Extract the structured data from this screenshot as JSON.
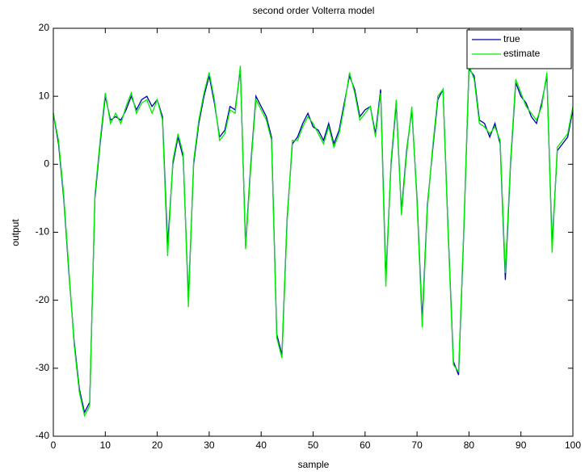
{
  "chart_data": {
    "type": "line",
    "title": "second order Volterra model",
    "xlabel": "sample",
    "ylabel": "output",
    "x": [
      0,
      1,
      2,
      3,
      4,
      5,
      6,
      7,
      8,
      9,
      10,
      11,
      12,
      13,
      14,
      15,
      16,
      17,
      18,
      19,
      20,
      21,
      22,
      23,
      24,
      25,
      26,
      27,
      28,
      29,
      30,
      31,
      32,
      33,
      34,
      35,
      36,
      37,
      38,
      39,
      40,
      41,
      42,
      43,
      44,
      45,
      46,
      47,
      48,
      49,
      50,
      51,
      52,
      53,
      54,
      55,
      56,
      57,
      58,
      59,
      60,
      61,
      62,
      63,
      64,
      65,
      66,
      67,
      68,
      69,
      70,
      71,
      72,
      73,
      74,
      75,
      76,
      77,
      78,
      79,
      80,
      81,
      82,
      83,
      84,
      85,
      86,
      87,
      88,
      89,
      90,
      91,
      92,
      93,
      94,
      95,
      96,
      97,
      98,
      99,
      100
    ],
    "series": [
      {
        "name": "true",
        "color": "#0000aa",
        "values": [
          7.5,
          3,
          -5,
          -16,
          -26,
          -33,
          -36.5,
          -35,
          -5,
          3,
          10,
          6.5,
          7,
          6.5,
          8,
          10,
          8,
          9.5,
          10,
          8.5,
          9.5,
          7,
          -12,
          0,
          4,
          1,
          -20,
          0,
          6,
          10,
          13,
          9,
          4,
          5,
          8.5,
          8,
          14,
          -12,
          0,
          10,
          8.5,
          7,
          4,
          -25,
          -28,
          -8,
          3,
          4,
          6,
          7.5,
          5.5,
          5,
          3.5,
          6,
          3,
          5,
          9,
          13,
          11,
          7,
          8,
          8.5,
          4.5,
          11,
          -17,
          0,
          9,
          -7,
          2,
          8,
          -5,
          -23,
          -6,
          2,
          9.5,
          11,
          -10,
          -29,
          -31,
          -10,
          14,
          13,
          6.5,
          6,
          4,
          6,
          3,
          -17,
          0,
          12,
          10,
          9,
          7,
          6,
          9,
          13,
          -12,
          2,
          3,
          4,
          8
        ]
      },
      {
        "name": "estimate",
        "color": "#00ee00",
        "values": [
          7.5,
          3.5,
          -4.5,
          -15.5,
          -26.5,
          -33.5,
          -37,
          -35.5,
          -4.5,
          3.5,
          10.5,
          6,
          7.5,
          6,
          8.5,
          10.5,
          7.5,
          9,
          9.5,
          7.5,
          9.5,
          6.5,
          -13.5,
          0.5,
          4.5,
          1.5,
          -21,
          0.5,
          6.5,
          10.5,
          13.5,
          9.5,
          3.5,
          4.5,
          8,
          7.5,
          14.5,
          -12.5,
          -0.5,
          9.5,
          8,
          6.5,
          3.5,
          -25.5,
          -28.5,
          -8.5,
          3.5,
          3.5,
          5.5,
          7,
          6,
          4.5,
          3,
          5.5,
          2.5,
          4.5,
          8.5,
          13.5,
          10.5,
          6.5,
          7.5,
          8.5,
          4,
          10.5,
          -18,
          0.5,
          9.5,
          -7.5,
          1.5,
          8.5,
          -5.5,
          -24,
          -6.5,
          2.5,
          10,
          11,
          -10.5,
          -29.5,
          -30.5,
          -9.5,
          14.5,
          12.5,
          6,
          5.5,
          4.5,
          5.5,
          3.5,
          -16,
          0.5,
          12.5,
          10.5,
          8.5,
          7.5,
          6.5,
          8.5,
          13.5,
          -13,
          2.5,
          3.5,
          4.5,
          8.5
        ]
      }
    ],
    "xlim": [
      0,
      100
    ],
    "ylim": [
      -40,
      20
    ],
    "xticks": [
      0,
      10,
      20,
      30,
      40,
      50,
      60,
      70,
      80,
      90,
      100
    ],
    "yticks": [
      -40,
      -30,
      -20,
      -10,
      0,
      10,
      20
    ],
    "legend": "upper right"
  }
}
